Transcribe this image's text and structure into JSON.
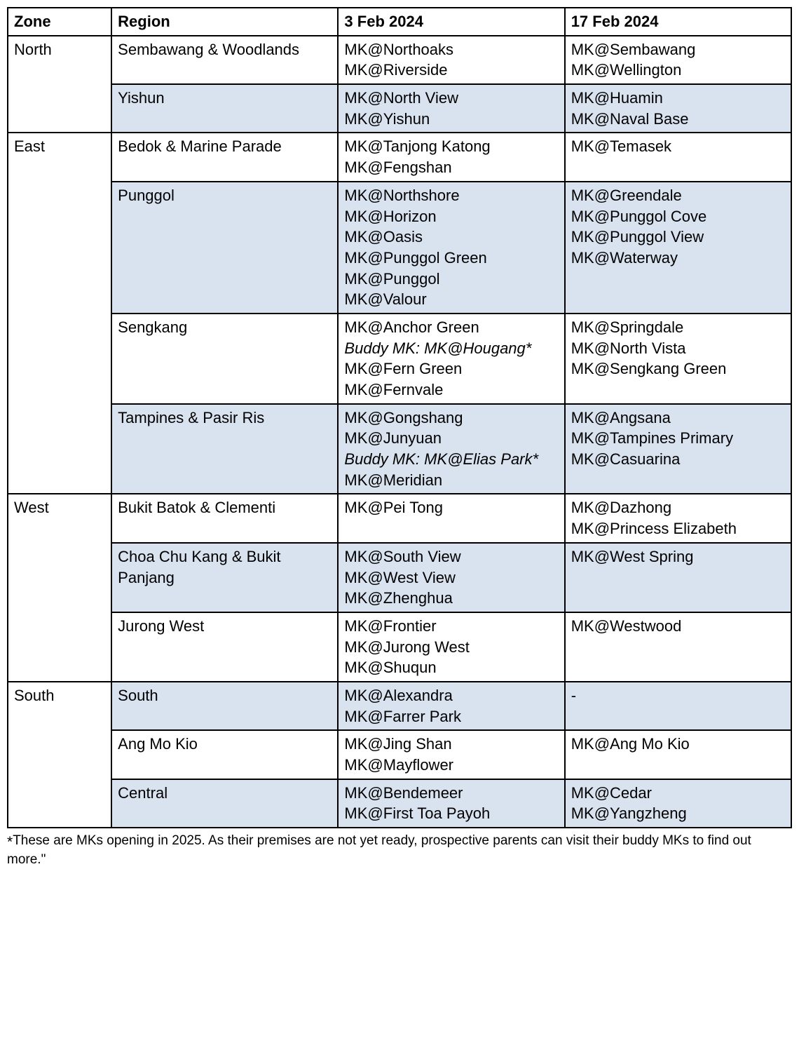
{
  "colors": {
    "shade": "#d9e2ef",
    "border": "#000000",
    "background": "#ffffff",
    "text": "#000000"
  },
  "typography": {
    "font_family": "Arial",
    "base_fontsize_pt": 16,
    "footnote_fontsize_pt": 14,
    "line_height": 1.35
  },
  "layout": {
    "column_widths_pct": [
      11,
      24,
      24,
      24
    ]
  },
  "headers": {
    "zone": "Zone",
    "region": "Region",
    "date1": "3 Feb 2024",
    "date2": "17 Feb 2024"
  },
  "zones": [
    {
      "name": "North",
      "rows": [
        {
          "region": "Sembawang & Woodlands",
          "shaded": false,
          "d1": [
            {
              "text": "MK@Northoaks"
            },
            {
              "text": "MK@Riverside"
            }
          ],
          "d2": [
            {
              "text": "MK@Sembawang"
            },
            {
              "text": "MK@Wellington"
            }
          ]
        },
        {
          "region": "Yishun",
          "shaded": true,
          "d1": [
            {
              "text": "MK@North View"
            },
            {
              "text": "MK@Yishun"
            }
          ],
          "d2": [
            {
              "text": "MK@Huamin"
            },
            {
              "text": "MK@Naval Base"
            }
          ]
        }
      ]
    },
    {
      "name": "East",
      "rows": [
        {
          "region": "Bedok & Marine Parade",
          "shaded": false,
          "d1": [
            {
              "text": "MK@Tanjong Katong"
            },
            {
              "text": "MK@Fengshan"
            }
          ],
          "d2": [
            {
              "text": "MK@Temasek"
            }
          ]
        },
        {
          "region": "Punggol",
          "shaded": true,
          "d1": [
            {
              "text": "MK@Northshore"
            },
            {
              "text": "MK@Horizon"
            },
            {
              "text": "MK@Oasis"
            },
            {
              "text": "MK@Punggol Green"
            },
            {
              "text": "MK@Punggol"
            },
            {
              "text": "MK@Valour"
            }
          ],
          "d2": [
            {
              "text": "MK@Greendale"
            },
            {
              "text": "MK@Punggol Cove"
            },
            {
              "text": "MK@Punggol View"
            },
            {
              "text": "MK@Waterway"
            }
          ]
        },
        {
          "region": "Sengkang",
          "shaded": false,
          "d1": [
            {
              "text": "MK@Anchor Green"
            },
            {
              "text": "Buddy MK: MK@Hougang*",
              "italic": true
            },
            {
              "text": "MK@Fern Green"
            },
            {
              "text": "MK@Fernvale"
            }
          ],
          "d2": [
            {
              "text": "MK@Springdale"
            },
            {
              "text": "MK@North Vista"
            },
            {
              "text": "MK@Sengkang Green"
            }
          ]
        },
        {
          "region": "Tampines & Pasir Ris",
          "shaded": true,
          "d1": [
            {
              "text": "MK@Gongshang"
            },
            {
              "text": "MK@Junyuan"
            },
            {
              "text": "Buddy MK: MK@Elias Park*",
              "italic": true
            },
            {
              "text": "MK@Meridian"
            }
          ],
          "d2": [
            {
              "text": "MK@Angsana"
            },
            {
              "text": "MK@Tampines Primary"
            },
            {
              "text": "MK@Casuarina"
            }
          ]
        }
      ]
    },
    {
      "name": "West",
      "rows": [
        {
          "region": "Bukit Batok & Clementi",
          "shaded": false,
          "d1": [
            {
              "text": "MK@Pei Tong"
            }
          ],
          "d2": [
            {
              "text": "MK@Dazhong"
            },
            {
              "text": "MK@Princess Elizabeth"
            }
          ]
        },
        {
          "region": "Choa Chu Kang & Bukit Panjang",
          "shaded": true,
          "d1": [
            {
              "text": "MK@South View"
            },
            {
              "text": "MK@West View"
            },
            {
              "text": "MK@Zhenghua"
            }
          ],
          "d2": [
            {
              "text": "MK@West Spring"
            }
          ]
        },
        {
          "region": "Jurong West",
          "shaded": false,
          "d1": [
            {
              "text": "MK@Frontier"
            },
            {
              "text": "MK@Jurong West"
            },
            {
              "text": "MK@Shuqun"
            }
          ],
          "d2": [
            {
              "text": "MK@Westwood"
            }
          ]
        }
      ]
    },
    {
      "name": "South",
      "rows": [
        {
          "region": "South",
          "shaded": true,
          "d1": [
            {
              "text": "MK@Alexandra"
            },
            {
              "text": "MK@Farrer Park"
            }
          ],
          "d2": [
            {
              "text": "-"
            }
          ]
        },
        {
          "region": "Ang Mo Kio",
          "shaded": false,
          "d1": [
            {
              "text": "MK@Jing Shan"
            },
            {
              "text": "MK@Mayflower"
            }
          ],
          "d2": [
            {
              "text": "MK@Ang Mo Kio"
            }
          ]
        },
        {
          "region": "Central",
          "shaded": true,
          "d1": [
            {
              "text": "MK@Bendemeer"
            },
            {
              "text": "MK@First Toa Payoh"
            }
          ],
          "d2": [
            {
              "text": "MK@Cedar"
            },
            {
              "text": "MK@Yangzheng"
            }
          ]
        }
      ]
    }
  ],
  "footnote": {
    "star": "*",
    "text": "These are MKs opening in 2025. As their premises are not yet ready, prospective parents can visit their buddy MKs to find out more.\""
  }
}
